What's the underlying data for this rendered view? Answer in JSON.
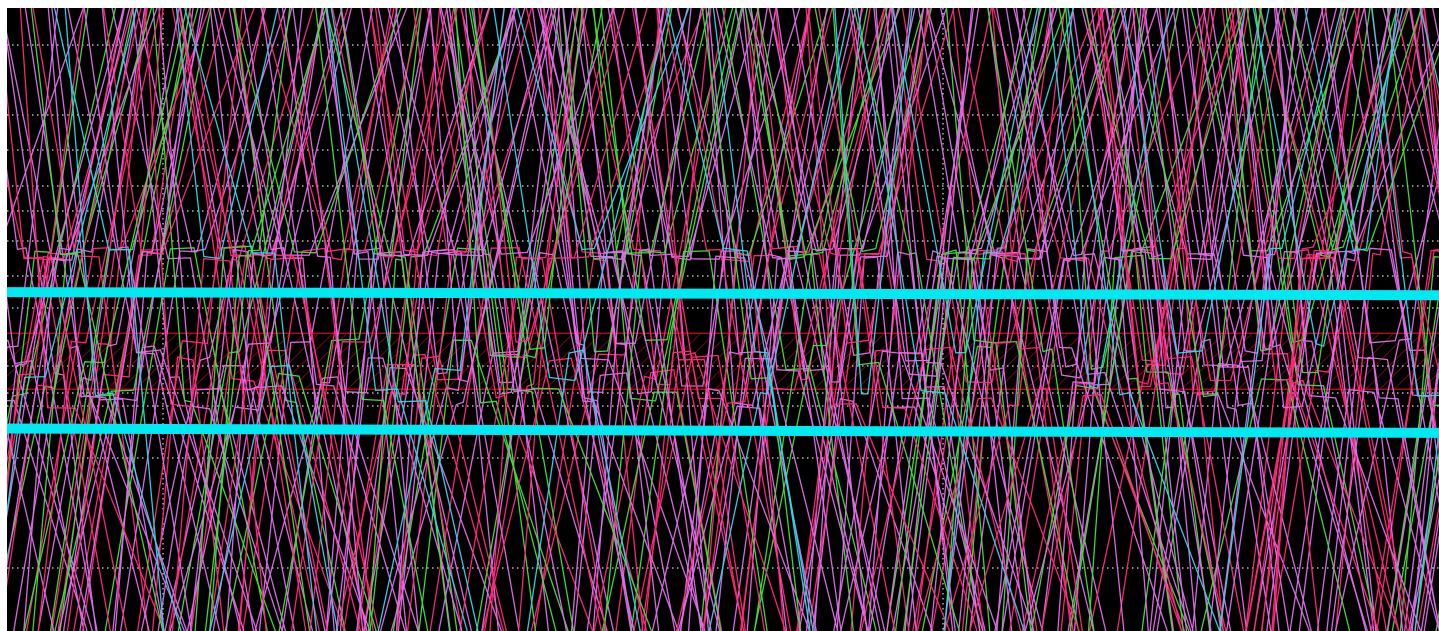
{
  "scope": {
    "background_color": "#000000",
    "window_border_color": "#ffffff",
    "grid": {
      "visible": true,
      "style": "dotted",
      "color": "#d8d8d8"
    },
    "trace_colors": {
      "violet": "#e070e8",
      "green": "#40e040",
      "magenta": "#ff2a78",
      "cyan": "#30d8e8"
    },
    "cursors": [
      {
        "name": "upper-cursor",
        "color": "#00e8f0",
        "level_left": 0.456,
        "level_right": 0.461
      },
      {
        "name": "lower-cursor",
        "color": "#00e8f0",
        "level_left": 0.675,
        "level_right": 0.682
      }
    ],
    "mask_region": {
      "color": "#a01010",
      "hatched": true,
      "top_level": 0.522,
      "bottom_level": 0.612
    }
  }
}
